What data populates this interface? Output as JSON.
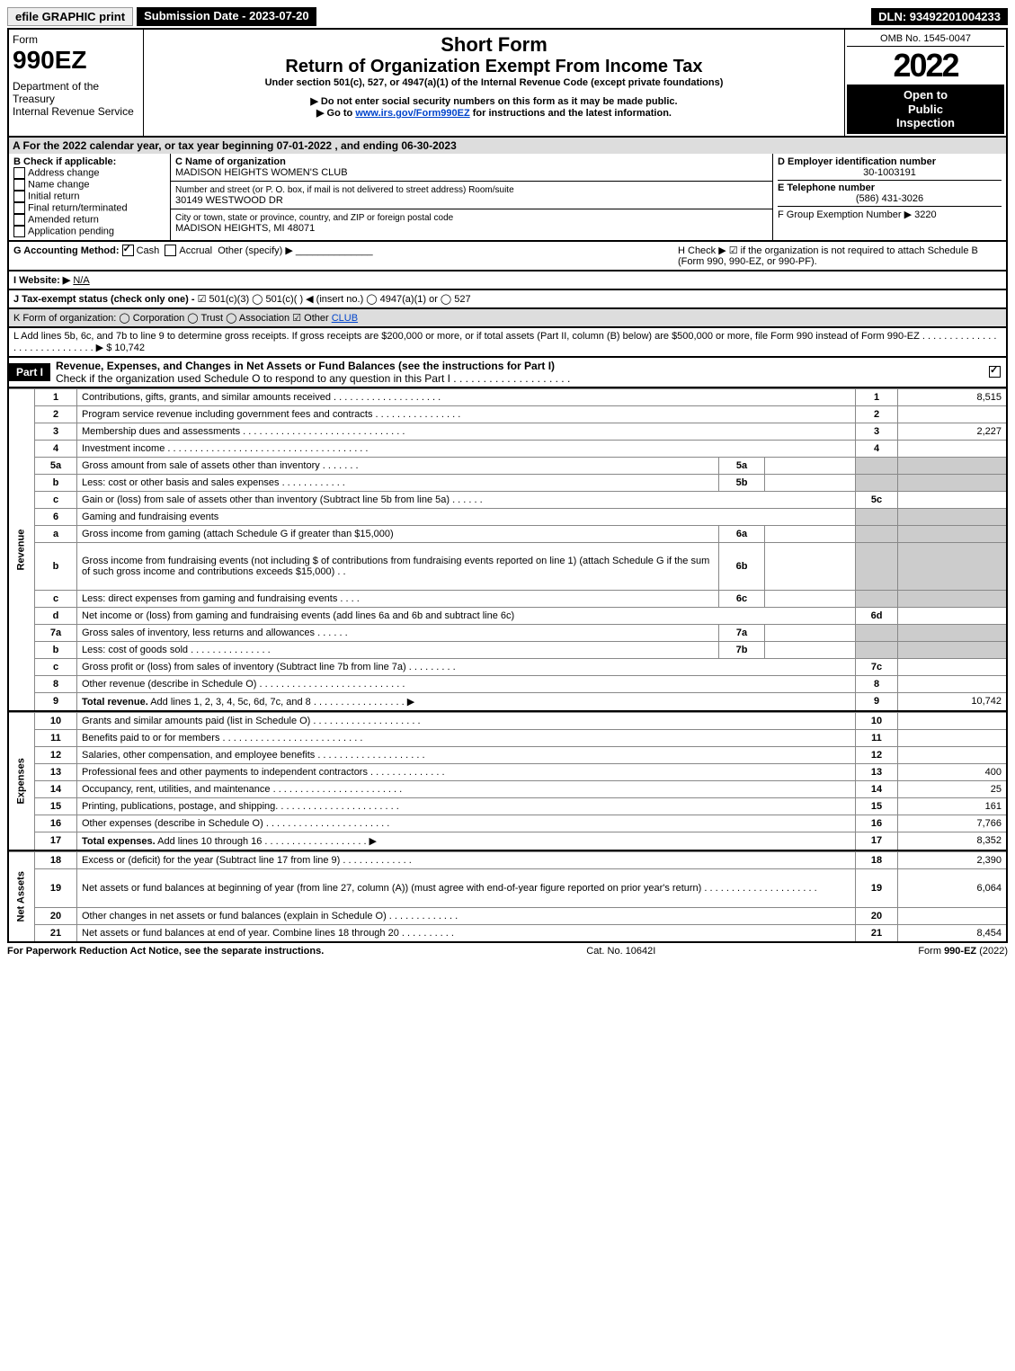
{
  "top": {
    "efile": "efile GRAPHIC print",
    "sub_date": "Submission Date - 2023-07-20",
    "dln": "DLN: 93492201004233"
  },
  "header": {
    "form_label": "Form",
    "form_num": "990EZ",
    "dept": "Department of the Treasury",
    "irs": "Internal Revenue Service",
    "short": "Short Form",
    "title2": "Return of Organization Exempt From Income Tax",
    "sub1": "Under section 501(c), 527, or 4947(a)(1) of the Internal Revenue Code (except private foundations)",
    "sub2": "▶ Do not enter social security numbers on this form as it may be made public.",
    "sub3_pre": "▶ Go to ",
    "sub3_link": "www.irs.gov/Form990EZ",
    "sub3_post": " for instructions and the latest information.",
    "omb": "OMB No. 1545-0047",
    "year": "2022",
    "open1": "Open to",
    "open2": "Public",
    "open3": "Inspection"
  },
  "A": "A  For the 2022 calendar year, or tax year beginning 07-01-2022 , and ending 06-30-2023",
  "B": {
    "label": "B  Check if applicable:",
    "items": [
      "Address change",
      "Name change",
      "Initial return",
      "Final return/terminated",
      "Amended return",
      "Application pending"
    ]
  },
  "C": {
    "c_label": "C Name of organization",
    "name": "MADISON HEIGHTS WOMEN'S CLUB",
    "addr_label": "Number and street (or P. O. box, if mail is not delivered to street address)       Room/suite",
    "addr": "30149 WESTWOOD DR",
    "city_label": "City or town, state or province, country, and ZIP or foreign postal code",
    "city": "MADISON HEIGHTS, MI  48071"
  },
  "D": {
    "label": "D Employer identification number",
    "ein": "30-1003191",
    "e_label": "E Telephone number",
    "phone": "(586) 431-3026",
    "f_label": "F Group Exemption Number   ▶ 3220"
  },
  "G": {
    "label": "G Accounting Method:",
    "cash": "Cash",
    "accrual": "Accrual",
    "other": "Other (specify) ▶"
  },
  "H": "H   Check ▶  ☑  if the organization is not required to attach Schedule B (Form 990, 990-EZ, or 990-PF).",
  "I": "I Website: ▶",
  "I_val": "N/A",
  "J_pre": "J Tax-exempt status (check only one) - ",
  "J_opts": "☑ 501(c)(3)  ◯ 501(c)(  ) ◀ (insert no.)  ◯ 4947(a)(1) or  ◯ 527",
  "K_pre": "K Form of organization:   ◯ Corporation   ◯ Trust   ◯ Association   ☑ Other ",
  "K_other": "CLUB",
  "L": "L Add lines 5b, 6c, and 7b to line 9 to determine gross receipts. If gross receipts are $200,000 or more, or if total assets (Part II, column (B) below) are $500,000 or more, file Form 990 instead of Form 990-EZ  .  .  .  .  .  .  .  .  .  .  .  .  .  .  .  .  .  .  .  .  .  .  .  .  .  .  .  .  .  ▶ $ 10,742",
  "part1": {
    "label": "Part I",
    "title": "Revenue, Expenses, and Changes in Net Assets or Fund Balances (see the instructions for Part I)",
    "check_line": "Check if the organization used Schedule O to respond to any question in this Part I  .   .   .   .   .   .   .   .   .   .   .   .   .   .   .   .   .   .   .   .",
    "check_checked": true
  },
  "sections": {
    "revenue": "Revenue",
    "expenses": "Expenses",
    "netassets": "Net Assets"
  },
  "lines": [
    {
      "n": "1",
      "t": "Contributions, gifts, grants, and similar amounts received  .   .   .   .   .   .   .   .   .   .   .   .   .   .   .   .   .   .   .   .",
      "r": "1",
      "a": "8,515"
    },
    {
      "n": "2",
      "t": "Program service revenue including government fees and contracts  .   .   .   .   .   .   .   .   .   .   .   .   .   .   .   .",
      "r": "2",
      "a": ""
    },
    {
      "n": "3",
      "t": "Membership dues and assessments  .   .   .   .   .   .   .   .   .   .   .   .   .   .   .   .   .   .   .   .   .   .   .   .   .   .   .   .   .   .",
      "r": "3",
      "a": "2,227"
    },
    {
      "n": "4",
      "t": "Investment income  .   .   .   .   .   .   .   .   .   .   .   .   .   .   .   .   .   .   .   .   .   .   .   .   .   .   .   .   .   .   .   .   .   .   .   .   .",
      "r": "4",
      "a": ""
    },
    {
      "n": "5a",
      "t": "Gross amount from sale of assets other than inventory  .   .   .   .   .   .   .",
      "sub": "5a",
      "suba": "",
      "grey": true
    },
    {
      "n": "b",
      "t": "Less: cost or other basis and sales expenses  .   .   .   .   .   .   .   .   .   .   .   .",
      "sub": "5b",
      "suba": "",
      "grey": true
    },
    {
      "n": "c",
      "t": "Gain or (loss) from sale of assets other than inventory (Subtract line 5b from line 5a)  .   .   .   .   .   .",
      "r": "5c",
      "a": ""
    },
    {
      "n": "6",
      "t": "Gaming and fundraising events",
      "grey": true
    },
    {
      "n": "a",
      "t": "Gross income from gaming (attach Schedule G if greater than $15,000)",
      "sub": "6a",
      "suba": "",
      "grey": true
    },
    {
      "n": "b",
      "t": "Gross income from fundraising events (not including $                              of contributions from fundraising events reported on line 1) (attach Schedule G if the sum of such gross income and contributions exceeds $15,000)     .   .",
      "sub": "6b",
      "suba": "",
      "grey": true,
      "tall": true
    },
    {
      "n": "c",
      "t": "Less: direct expenses from gaming and fundraising events     .   .   .   .",
      "sub": "6c",
      "suba": "",
      "grey": true
    },
    {
      "n": "d",
      "t": "Net income or (loss) from gaming and fundraising events (add lines 6a and 6b and subtract line 6c)",
      "r": "6d",
      "a": ""
    },
    {
      "n": "7a",
      "t": "Gross sales of inventory, less returns and allowances  .   .   .   .   .   .",
      "sub": "7a",
      "suba": "",
      "grey": true
    },
    {
      "n": "b",
      "t": "Less: cost of goods sold         .   .   .   .   .   .   .   .   .   .   .   .   .   .   .",
      "sub": "7b",
      "suba": "",
      "grey": true
    },
    {
      "n": "c",
      "t": "Gross profit or (loss) from sales of inventory (Subtract line 7b from line 7a)  .   .   .   .   .   .   .   .   .",
      "r": "7c",
      "a": ""
    },
    {
      "n": "8",
      "t": "Other revenue (describe in Schedule O)  .   .   .   .   .   .   .   .   .   .   .   .   .   .   .   .   .   .   .   .   .   .   .   .   .   .   .",
      "r": "8",
      "a": ""
    },
    {
      "n": "9",
      "t": "Total revenue. Add lines 1, 2, 3, 4, 5c, 6d, 7c, and 8   .   .   .   .   .   .   .   .   .   .   .   .   .   .   .   .   .         ▶",
      "r": "9",
      "a": "10,742",
      "bold": true
    }
  ],
  "exp_lines": [
    {
      "n": "10",
      "t": "Grants and similar amounts paid (list in Schedule O)  .   .   .   .   .   .   .   .   .   .   .   .   .   .   .   .   .   .   .   .",
      "r": "10",
      "a": ""
    },
    {
      "n": "11",
      "t": "Benefits paid to or for members       .   .   .   .   .   .   .   .   .   .   .   .   .   .   .   .   .   .   .   .   .   .   .   .   .   .",
      "r": "11",
      "a": ""
    },
    {
      "n": "12",
      "t": "Salaries, other compensation, and employee benefits .   .   .   .   .   .   .   .   .   .   .   .   .   .   .   .   .   .   .   .",
      "r": "12",
      "a": ""
    },
    {
      "n": "13",
      "t": "Professional fees and other payments to independent contractors  .   .   .   .   .   .   .   .   .   .   .   .   .   .",
      "r": "13",
      "a": "400"
    },
    {
      "n": "14",
      "t": "Occupancy, rent, utilities, and maintenance .   .   .   .   .   .   .   .   .   .   .   .   .   .   .   .   .   .   .   .   .   .   .   .",
      "r": "14",
      "a": "25"
    },
    {
      "n": "15",
      "t": "Printing, publications, postage, and shipping.   .   .   .   .   .   .   .   .   .   .   .   .   .   .   .   .   .   .   .   .   .   .",
      "r": "15",
      "a": "161"
    },
    {
      "n": "16",
      "t": "Other expenses (describe in Schedule O)     .   .   .   .   .   .   .   .   .   .   .   .   .   .   .   .   .   .   .   .   .   .   .",
      "r": "16",
      "a": "7,766"
    },
    {
      "n": "17",
      "t": "Total expenses. Add lines 10 through 16     .   .   .   .   .   .   .   .   .   .   .   .   .   .   .   .   .   .   .        ▶",
      "r": "17",
      "a": "8,352",
      "bold": true
    }
  ],
  "na_lines": [
    {
      "n": "18",
      "t": "Excess or (deficit) for the year (Subtract line 17 from line 9)         .   .   .   .   .   .   .   .   .   .   .   .   .",
      "r": "18",
      "a": "2,390"
    },
    {
      "n": "19",
      "t": "Net assets or fund balances at beginning of year (from line 27, column (A)) (must agree with end-of-year figure reported on prior year's return) .   .   .   .   .   .   .   .   .   .   .   .   .   .   .   .   .   .   .   .   .",
      "r": "19",
      "a": "6,064",
      "tall": true
    },
    {
      "n": "20",
      "t": "Other changes in net assets or fund balances (explain in Schedule O) .   .   .   .   .   .   .   .   .   .   .   .   .",
      "r": "20",
      "a": ""
    },
    {
      "n": "21",
      "t": "Net assets or fund balances at end of year. Combine lines 18 through 20 .   .   .   .   .   .   .   .   .   .",
      "r": "21",
      "a": "8,454"
    }
  ],
  "footer": {
    "left": "For Paperwork Reduction Act Notice, see the separate instructions.",
    "center": "Cat. No. 10642I",
    "right": "Form 990-EZ (2022)"
  }
}
